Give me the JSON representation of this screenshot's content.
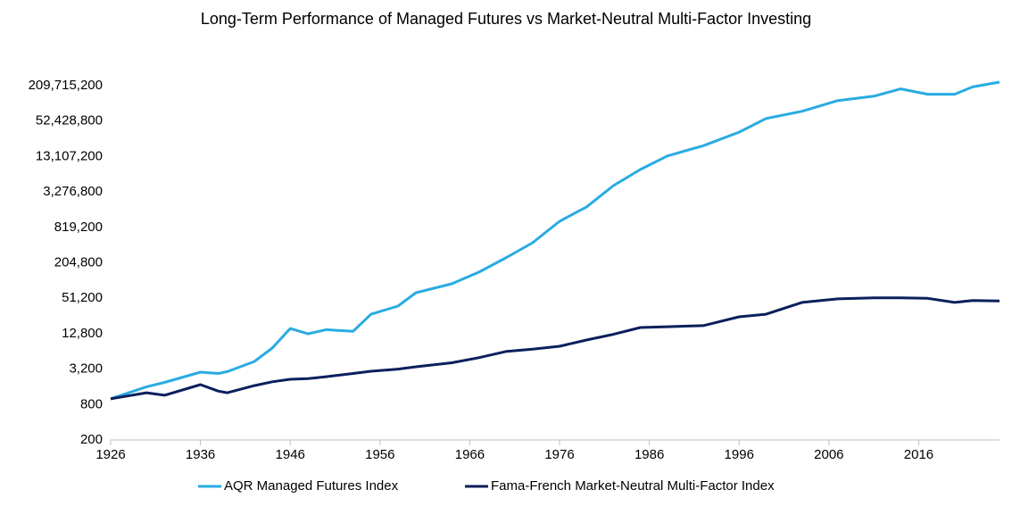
{
  "chart_data": {
    "type": "line",
    "title": "Long-Term Performance of Managed Futures vs Market-Neutral Multi-Factor Investing",
    "x": [
      1926,
      1930,
      1932,
      1936,
      1938,
      1939,
      1942,
      1944,
      1946,
      1948,
      1950,
      1953,
      1955,
      1958,
      1960,
      1964,
      1967,
      1970,
      1973,
      1976,
      1979,
      1982,
      1985,
      1988,
      1992,
      1996,
      1999,
      2003,
      2007,
      2011,
      2014,
      2017,
      2020,
      2022,
      2025
    ],
    "series": [
      {
        "name": "AQR Managed Futures Index",
        "color": "#29abe2",
        "values": [
          1000,
          1600,
          1900,
          2840,
          2700,
          2900,
          4300,
          7300,
          15700,
          12700,
          15000,
          14000,
          27400,
          37600,
          63600,
          90000,
          142000,
          248000,
          449000,
          1040000,
          1820000,
          4200000,
          7900000,
          13400000,
          20000000,
          34000000,
          58000000,
          77000000,
          117000000,
          139000000,
          185000000,
          150000000,
          150000000,
          200000000,
          241000000
        ]
      },
      {
        "name": "Fama-French Market-Neutral Multi-Factor Index",
        "color": "#0b1f5c",
        "values": [
          1000,
          1270,
          1150,
          1740,
          1350,
          1270,
          1680,
          1950,
          2150,
          2200,
          2380,
          2700,
          2940,
          3200,
          3500,
          4100,
          5000,
          6360,
          7000,
          7830,
          10000,
          12500,
          16300,
          16800,
          17500,
          24800,
          27400,
          43400,
          50000,
          52000,
          52000,
          51000,
          43400,
          47000,
          46000
        ]
      }
    ],
    "log_scale": true,
    "xlim": [
      1926,
      2025
    ],
    "xticks": [
      1926,
      1936,
      1946,
      1956,
      1966,
      1976,
      1986,
      1996,
      2006,
      2016
    ],
    "ylim": [
      200,
      209715200
    ],
    "yticks": [
      200,
      800,
      {
        "value": 3200,
        "label": "3,200"
      },
      {
        "value": 12800,
        "label": "12,800"
      },
      {
        "value": 51200,
        "label": "51,200"
      },
      {
        "value": 204800,
        "label": "204,800"
      },
      {
        "value": 819200,
        "label": "819,200"
      },
      {
        "value": 3276800,
        "label": "3,276,800"
      },
      {
        "value": 13107200,
        "label": "13,107,200"
      },
      {
        "value": 52428800,
        "label": "52,428,800"
      },
      {
        "value": 209715200,
        "label": "209,715,200"
      }
    ],
    "legend": "bottom"
  }
}
